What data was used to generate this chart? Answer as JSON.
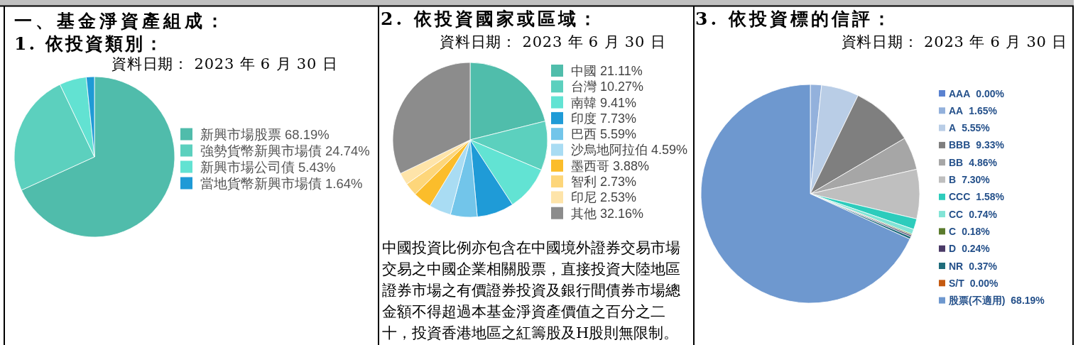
{
  "chart_data": [
    {
      "type": "pie",
      "title": "1. 依投資類別：",
      "subtitle": "資料日期： 2023 年 6 月 30 日",
      "annotations": [
        "一、基金淨資產組成："
      ],
      "categories": [
        "新興市場股票",
        "強勢貨幣新興市場債",
        "新興市場公司債",
        "當地貨幣新興市場債"
      ],
      "values": [
        68.19,
        24.74,
        5.43,
        1.64
      ],
      "value_labels": [
        "68.19%",
        "24.74%",
        "5.43%",
        "1.64%"
      ],
      "colors": [
        "#50bcab",
        "#5cd0be",
        "#62e2d2",
        "#1f9ad6"
      ],
      "legend": "right"
    },
    {
      "type": "pie",
      "title": "2. 依投資國家或區域：",
      "subtitle": "資料日期： 2023 年 6 月 30 日",
      "annotations": [
        "中國投資比例亦包含在中國境外證券交易市場交易之中國企業相關股票，直接投資大陸地區證券市場之有價證券投資及銀行間債券市場總金額不得超過本基金淨資產價值之百分之二十，投資香港地區之紅籌股及H股則無限制。"
      ],
      "categories": [
        "中國",
        "台灣",
        "南韓",
        "印度",
        "巴西",
        "沙烏地阿拉伯",
        "墨西哥",
        "智利",
        "印尼",
        "其他"
      ],
      "values": [
        21.11,
        10.27,
        9.41,
        7.73,
        5.59,
        4.59,
        3.88,
        2.73,
        2.53,
        32.16
      ],
      "value_labels": [
        "21.11%",
        "10.27%",
        "9.41%",
        "7.73%",
        "5.59%",
        "4.59%",
        "3.88%",
        "2.73%",
        "2.53%",
        "32.16%"
      ],
      "colors": [
        "#50bdab",
        "#5cd0be",
        "#62e3d3",
        "#1f9bd7",
        "#72c5ea",
        "#a9dcf3",
        "#fbbd2b",
        "#fdd67a",
        "#fee4a9",
        "#8c8c8c"
      ],
      "legend": "right"
    },
    {
      "type": "pie",
      "title": "3. 依投資標的信評：",
      "subtitle": "資料日期： 2023 年 6 月 30 日",
      "categories": [
        "AAA",
        "AA",
        "A",
        "BBB",
        "BB",
        "B",
        "CCC",
        "CC",
        "C",
        "D",
        "NR",
        "S/T",
        "股票(不適用)"
      ],
      "values": [
        0,
        1.65,
        5.55,
        9.33,
        4.86,
        7.3,
        1.58,
        0.74,
        0.18,
        0.24,
        0.37,
        0,
        68.19
      ],
      "value_labels": [
        "0.00%",
        "1.65%",
        "5.55%",
        "9.33%",
        "4.86%",
        "7.30%",
        "1.58%",
        "0.74%",
        "0.18%",
        "0.24%",
        "0.37%",
        "0.00%",
        "68.19%"
      ],
      "colors": [
        "#5a82d0",
        "#93b1dc",
        "#b9cde6",
        "#7f7f7f",
        "#a6a6a6",
        "#bfbfbf",
        "#2dccbc",
        "#82e4d6",
        "#5b7b2d",
        "#4a3a67",
        "#1f6c7b",
        "#c55a11",
        "#6e98cf"
      ],
      "legend": "right"
    }
  ]
}
